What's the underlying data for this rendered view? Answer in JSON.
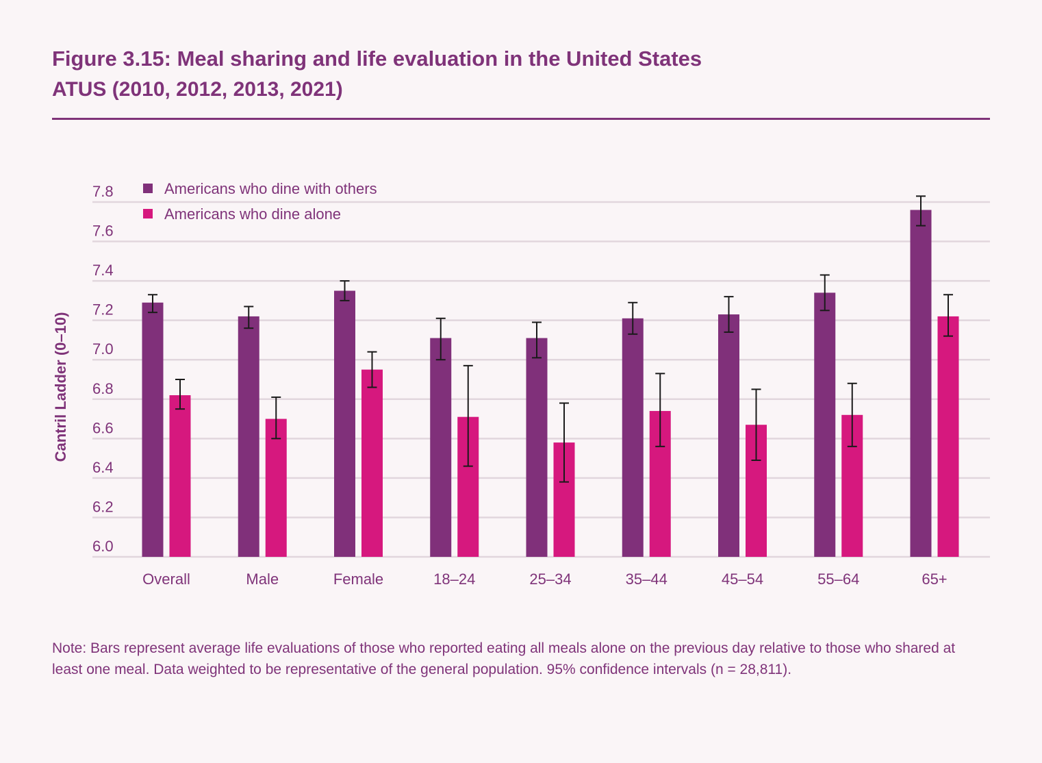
{
  "figure": {
    "title": "Figure 3.15: Meal sharing and life evaluation in the United States",
    "subtitle": "ATUS (2010, 2012, 2013, 2021)",
    "note": "Note: Bars represent average life evaluations of those who reported eating all meals alone on the previous day relative to those who shared at least one meal. Data weighted to be representative of the general population. 95% confidence intervals (n = 28,811)."
  },
  "colors": {
    "with_others": "#80307a",
    "alone": "#d6187e",
    "text": "#7f3379",
    "grid": "#e1d6dd",
    "background": "#faf5f7"
  },
  "chart_data": {
    "type": "bar",
    "title": "Figure 3.15: Meal sharing and life evaluation in the United States",
    "subtitle": "ATUS (2010, 2012, 2013, 2021)",
    "xlabel": "",
    "ylabel": "Cantril Ladder (0–10)",
    "ylim": [
      6.0,
      7.8
    ],
    "yticks": [
      "6.0",
      "6.2",
      "6.4",
      "6.6",
      "6.8",
      "7.0",
      "7.2",
      "7.4",
      "7.6",
      "7.8"
    ],
    "grid": true,
    "legend_position": "top-left",
    "categories": [
      "Overall",
      "Male",
      "Female",
      "18–24",
      "25–34",
      "35–44",
      "45–54",
      "55–64",
      "65+"
    ],
    "series": [
      {
        "name": "Americans who dine with others",
        "color": "#80307a",
        "values": [
          7.29,
          7.22,
          7.35,
          7.11,
          7.11,
          7.21,
          7.23,
          7.34,
          7.76
        ],
        "ci_low": [
          7.24,
          7.16,
          7.3,
          7.0,
          7.01,
          7.13,
          7.14,
          7.25,
          7.68
        ],
        "ci_high": [
          7.33,
          7.27,
          7.4,
          7.21,
          7.19,
          7.29,
          7.32,
          7.43,
          7.83
        ]
      },
      {
        "name": "Americans who dine alone",
        "color": "#d6187e",
        "values": [
          6.82,
          6.7,
          6.95,
          6.71,
          6.58,
          6.74,
          6.67,
          6.72,
          7.22
        ],
        "ci_low": [
          6.75,
          6.6,
          6.86,
          6.46,
          6.38,
          6.56,
          6.49,
          6.56,
          7.12
        ],
        "ci_high": [
          6.9,
          6.81,
          7.04,
          6.97,
          6.78,
          6.93,
          6.85,
          6.88,
          7.33
        ]
      }
    ]
  }
}
